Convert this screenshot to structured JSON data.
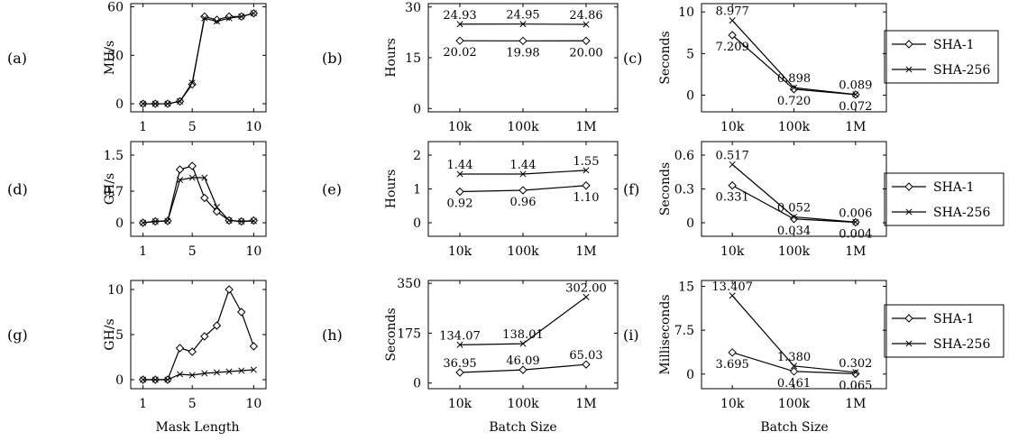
{
  "panel_labels": [
    "(a)",
    "(b)",
    "(c)",
    "(d)",
    "(e)",
    "(f)",
    "(g)",
    "(h)",
    "(i)"
  ],
  "axis_titles": {
    "col1": "Mask Length",
    "col2": "Batch Size",
    "col3": "Batch Size"
  },
  "legend_rows": [
    [
      "SHA-1",
      "SHA-256"
    ],
    [
      "SHA-1",
      "SHA-256"
    ],
    [
      "SHA-1",
      "SHA-256"
    ]
  ],
  "chart_data": [
    {
      "type": "line",
      "panel": "(a)",
      "ylabel": "MH/s",
      "xscale": "linear",
      "xlim": [
        0,
        11
      ],
      "xticks": [
        1,
        5,
        10
      ],
      "ylim": [
        -5,
        62
      ],
      "yticks": [
        0,
        30,
        60
      ],
      "x": [
        1,
        2,
        3,
        4,
        5,
        6,
        7,
        8,
        9,
        10
      ],
      "series": [
        {
          "name": "SHA-1",
          "marker": "diamond",
          "values": [
            0,
            0,
            0,
            1.5,
            12,
            54,
            52,
            54,
            54,
            56
          ]
        },
        {
          "name": "SHA-256",
          "marker": "cross",
          "values": [
            0,
            0,
            0,
            1.5,
            13,
            53,
            51,
            53,
            54,
            56
          ]
        }
      ]
    },
    {
      "type": "line",
      "panel": "(b)",
      "ylabel": "Hours",
      "xscale": "categorical",
      "categories": [
        "10k",
        "100k",
        "1M"
      ],
      "ylim": [
        -1,
        31
      ],
      "yticks": [
        0,
        15,
        30
      ],
      "series": [
        {
          "name": "SHA-1",
          "marker": "diamond",
          "values": [
            20.02,
            19.98,
            20.0
          ],
          "labels": [
            "20.02",
            "19.98",
            "20.00"
          ],
          "label_pos": "below"
        },
        {
          "name": "SHA-256",
          "marker": "cross",
          "values": [
            24.93,
            24.95,
            24.86
          ],
          "labels": [
            "24.93",
            "24.95",
            "24.86"
          ],
          "label_pos": "above"
        }
      ]
    },
    {
      "type": "line",
      "panel": "(c)",
      "ylabel": "Seconds",
      "xscale": "categorical",
      "categories": [
        "10k",
        "100k",
        "1M"
      ],
      "ylim": [
        -2,
        11
      ],
      "yticks": [
        0,
        5,
        10
      ],
      "series": [
        {
          "name": "SHA-1",
          "marker": "diamond",
          "values": [
            7.209,
            0.72,
            0.072
          ],
          "labels": [
            "7.209",
            "0.720",
            "0.072"
          ],
          "label_pos": "below"
        },
        {
          "name": "SHA-256",
          "marker": "cross",
          "values": [
            8.977,
            0.898,
            0.089
          ],
          "labels": [
            "8.977",
            "0.898",
            "0.089"
          ],
          "label_pos": "above"
        }
      ]
    },
    {
      "type": "line",
      "panel": "(d)",
      "ylabel": "GH/s",
      "xscale": "linear",
      "xlim": [
        0,
        11
      ],
      "xticks": [
        1,
        5,
        10
      ],
      "ylim": [
        -0.3,
        1.8
      ],
      "yticks": [
        0,
        0.7,
        1.5
      ],
      "ytick_labels": [
        "0",
        "0.7",
        "1.5"
      ],
      "x": [
        1,
        2,
        3,
        4,
        5,
        6,
        7,
        8,
        9,
        10
      ],
      "series": [
        {
          "name": "SHA-1",
          "marker": "diamond",
          "values": [
            0,
            0.03,
            0.04,
            1.18,
            1.26,
            0.55,
            0.25,
            0.05,
            0.03,
            0.05
          ]
        },
        {
          "name": "SHA-256",
          "marker": "cross",
          "values": [
            0,
            0.03,
            0.04,
            0.95,
            1.0,
            1.0,
            0.35,
            0.05,
            0.03,
            0.04
          ]
        }
      ]
    },
    {
      "type": "line",
      "panel": "(e)",
      "ylabel": "Hours",
      "xscale": "categorical",
      "categories": [
        "10k",
        "100k",
        "1M"
      ],
      "ylim": [
        -0.4,
        2.4
      ],
      "yticks": [
        0,
        1,
        2
      ],
      "series": [
        {
          "name": "SHA-1",
          "marker": "diamond",
          "values": [
            0.92,
            0.96,
            1.1
          ],
          "labels": [
            "0.92",
            "0.96",
            "1.10"
          ],
          "label_pos": "below"
        },
        {
          "name": "SHA-256",
          "marker": "cross",
          "values": [
            1.44,
            1.44,
            1.55
          ],
          "labels": [
            "1.44",
            "1.44",
            "1.55"
          ],
          "label_pos": "above"
        }
      ]
    },
    {
      "type": "line",
      "panel": "(f)",
      "ylabel": "Seconds",
      "xscale": "categorical",
      "categories": [
        "10k",
        "100k",
        "1M"
      ],
      "ylim": [
        -0.12,
        0.72
      ],
      "yticks": [
        0,
        0.3,
        0.6
      ],
      "ytick_labels": [
        "0",
        "0.3",
        "0.6"
      ],
      "series": [
        {
          "name": "SHA-1",
          "marker": "diamond",
          "values": [
            0.331,
            0.034,
            0.004
          ],
          "labels": [
            "0.331",
            "0.034",
            "0.004"
          ],
          "label_pos": "below"
        },
        {
          "name": "SHA-256",
          "marker": "cross",
          "values": [
            0.517,
            0.052,
            0.006
          ],
          "labels": [
            "0.517",
            "0.052",
            "0.006"
          ],
          "label_pos": "above"
        }
      ]
    },
    {
      "type": "line",
      "panel": "(g)",
      "ylabel": "GH/s",
      "xscale": "linear",
      "xlim": [
        0,
        11
      ],
      "xticks": [
        1,
        5,
        10
      ],
      "ylim": [
        -1,
        11
      ],
      "yticks": [
        0,
        5,
        10
      ],
      "x": [
        1,
        2,
        3,
        4,
        5,
        6,
        7,
        8,
        9,
        10
      ],
      "series": [
        {
          "name": "SHA-1",
          "marker": "diamond",
          "values": [
            0,
            0,
            0,
            3.5,
            3.1,
            4.8,
            6.0,
            10.0,
            7.5,
            3.7
          ]
        },
        {
          "name": "SHA-256",
          "marker": "cross",
          "values": [
            0,
            0,
            0,
            0.6,
            0.5,
            0.7,
            0.8,
            0.9,
            1.0,
            1.1
          ]
        }
      ]
    },
    {
      "type": "line",
      "panel": "(h)",
      "ylabel": "Seconds",
      "xscale": "categorical",
      "categories": [
        "10k",
        "100k",
        "1M"
      ],
      "ylim": [
        -20,
        360
      ],
      "yticks": [
        0,
        175,
        350
      ],
      "series": [
        {
          "name": "SHA-1",
          "marker": "diamond",
          "values": [
            36.95,
            46.09,
            65.03
          ],
          "labels": [
            "36.95",
            "46.09",
            "65.03"
          ],
          "label_pos": "above"
        },
        {
          "name": "SHA-256",
          "marker": "cross",
          "values": [
            134.07,
            138.01,
            302.0
          ],
          "labels": [
            "134.07",
            "138.01",
            "302.00"
          ],
          "label_pos": "above"
        }
      ]
    },
    {
      "type": "line",
      "panel": "(i)",
      "ylabel": "Milliseconds",
      "xscale": "categorical",
      "categories": [
        "10k",
        "100k",
        "1M"
      ],
      "ylim": [
        -2.5,
        16
      ],
      "yticks": [
        0,
        7.5,
        15
      ],
      "ytick_labels": [
        "0",
        "7.5",
        "15"
      ],
      "series": [
        {
          "name": "SHA-1",
          "marker": "diamond",
          "values": [
            3.695,
            0.461,
            0.065
          ],
          "labels": [
            "3.695",
            "0.461",
            "0.065"
          ],
          "label_pos": "below"
        },
        {
          "name": "SHA-256",
          "marker": "cross",
          "values": [
            13.407,
            1.38,
            0.302
          ],
          "labels": [
            "13.407",
            "1.380",
            "0.302"
          ],
          "label_pos": "above"
        }
      ]
    }
  ]
}
